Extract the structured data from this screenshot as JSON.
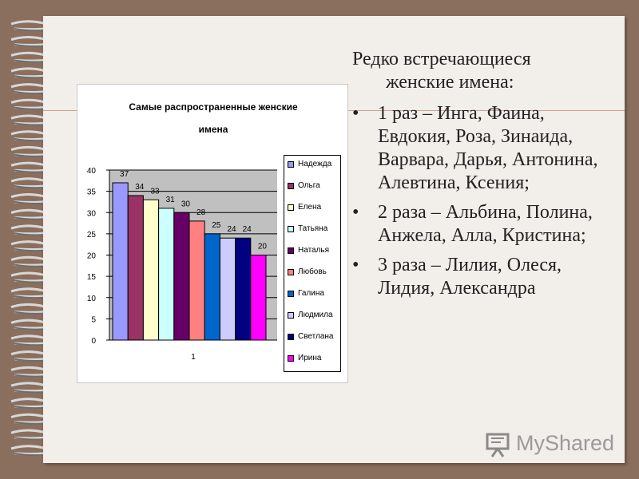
{
  "slide": {
    "heading_line1": "Редко встречающиеся",
    "heading_line2": "женские имена:",
    "bullets": [
      {
        "symbol": "•",
        "text": "1 раз – Инга, Фаина, Евдокия, Роза, Зинаида, Варвара, Дарья, Антонина, Алевтина, Ксения;"
      },
      {
        "symbol": "•",
        "text": "2 раза –  Альбина, Полина, Анжела, Алла, Кристина;"
      },
      {
        "symbol": "•",
        "text": "3 раза – Лилия, Олеся, Лидия, Александра"
      }
    ],
    "logo_text": "MyShared",
    "logo_icon": "presentation-screen-icon"
  },
  "chart_data": {
    "type": "bar",
    "title": "Самые распространенные женские\nимена",
    "categories": [
      "1"
    ],
    "ylim": [
      0,
      40
    ],
    "yticks": [
      0,
      5,
      10,
      15,
      20,
      25,
      30,
      35,
      40
    ],
    "grid": true,
    "legend_position": "right",
    "series": [
      {
        "name": "Надежда",
        "value": 37,
        "color": "#9999FF"
      },
      {
        "name": "Ольга",
        "value": 34,
        "color": "#993366"
      },
      {
        "name": "Елена",
        "value": 33,
        "color": "#FFFFCC"
      },
      {
        "name": "Татьяна",
        "value": 31,
        "color": "#CCFFFF"
      },
      {
        "name": "Наталья",
        "value": 30,
        "color": "#660066"
      },
      {
        "name": "Любовь",
        "value": 28,
        "color": "#FF8080"
      },
      {
        "name": "Галина",
        "value": 25,
        "color": "#0066CC"
      },
      {
        "name": "Людмила",
        "value": 24,
        "color": "#CCCCFF"
      },
      {
        "name": "Светлана",
        "value": 24,
        "color": "#000080"
      },
      {
        "name": "Ирина",
        "value": 20,
        "color": "#FF00FF"
      }
    ]
  }
}
